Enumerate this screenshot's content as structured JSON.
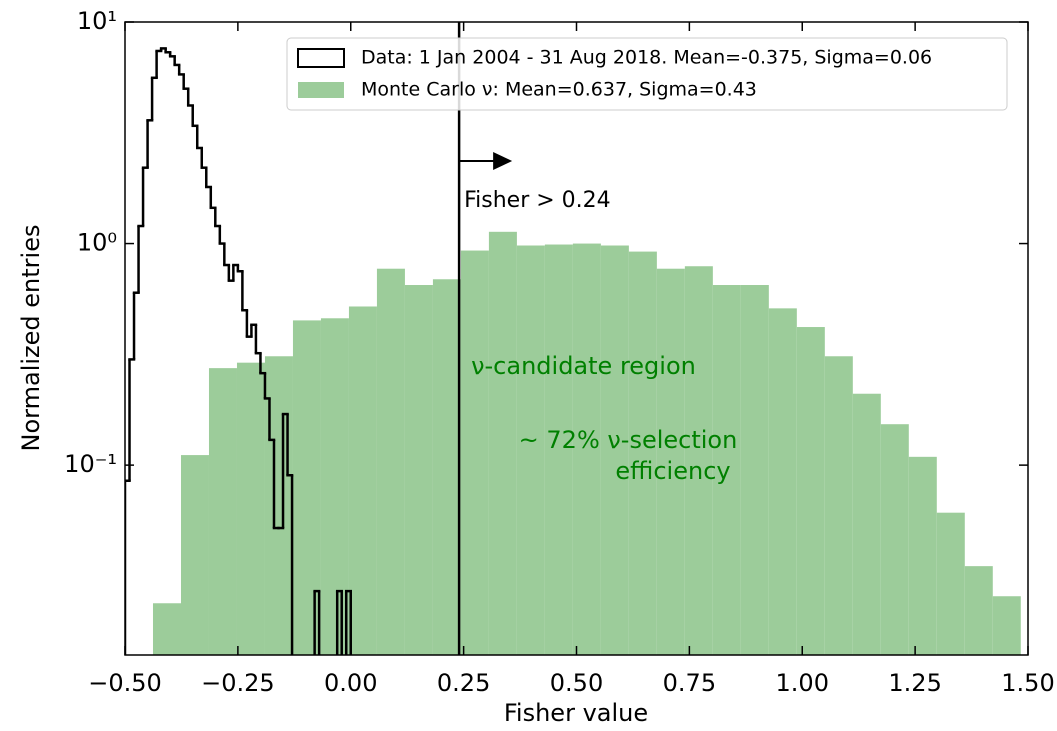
{
  "chart_data": {
    "type": "histogram",
    "xlabel": "Fisher value",
    "ylabel": "Normalized entries",
    "xlim": [
      -0.5,
      1.5
    ],
    "ylim": [
      0.0139,
      10
    ],
    "yscale": "log",
    "xticks": [
      {
        "value": -0.5,
        "label": "−0.50"
      },
      {
        "value": -0.25,
        "label": "−0.25"
      },
      {
        "value": 0,
        "label": "0.00"
      },
      {
        "value": 0.25,
        "label": "0.25"
      },
      {
        "value": 0.5,
        "label": "0.50"
      },
      {
        "value": 0.75,
        "label": "0.75"
      },
      {
        "value": 1,
        "label": "1.00"
      },
      {
        "value": 1.25,
        "label": "1.25"
      },
      {
        "value": 1.5,
        "label": "1.50"
      }
    ],
    "yticks": [
      {
        "value": 0.1,
        "label": "10⁻¹"
      },
      {
        "value": 1,
        "label": "10⁰"
      },
      {
        "value": 10,
        "label": "10¹"
      }
    ],
    "legend_position": "upper right",
    "series": [
      {
        "name": "Data: 1 Jan 2004 - 31 Aug 2018. Mean=-0.375, Sigma=0.06",
        "style": "step",
        "color": "#000000",
        "bins": [
          -0.5,
          -0.49,
          -0.48,
          -0.47,
          -0.46,
          -0.45,
          -0.44,
          -0.43,
          -0.42,
          -0.41,
          -0.4,
          -0.39,
          -0.38,
          -0.37,
          -0.36,
          -0.35,
          -0.34,
          -0.33,
          -0.32,
          -0.31,
          -0.3,
          -0.29,
          -0.28,
          -0.27,
          -0.26,
          -0.25,
          -0.24,
          -0.23,
          -0.22,
          -0.21,
          -0.2,
          -0.19,
          -0.18,
          -0.17,
          -0.16,
          -0.15,
          -0.14,
          -0.13,
          -0.12,
          -0.11,
          -0.1,
          -0.09,
          -0.08,
          -0.07,
          -0.06,
          -0.05,
          -0.04,
          -0.03,
          -0.02,
          -0.01,
          0,
          0.01
        ],
        "values": [
          0.085,
          0.3,
          0.6,
          1.2,
          2.2,
          3.6,
          5.6,
          7.4,
          7.6,
          7.3,
          7.0,
          6.4,
          5.8,
          5.0,
          4.2,
          3.4,
          2.7,
          2.2,
          1.8,
          1.45,
          1.2,
          1.0,
          0.8,
          0.68,
          0.8,
          0.75,
          0.5,
          0.38,
          0.43,
          0.32,
          0.26,
          0.2,
          0.13,
          0.052,
          0.052,
          0.17,
          0.09,
          0,
          0,
          0,
          0,
          0,
          0.027,
          0,
          0,
          0,
          0,
          0.027,
          0,
          0.027,
          0
        ]
      },
      {
        "name": "Monte Carlo ν: Mean=0.637, Sigma=0.43",
        "style": "filled",
        "color": "#9ccc9a",
        "bins": [
          -0.438,
          -0.376,
          -0.314,
          -0.252,
          -0.19,
          -0.128,
          -0.066,
          -0.004,
          0.058,
          0.12,
          0.182,
          0.244,
          0.306,
          0.368,
          0.43,
          0.492,
          0.554,
          0.616,
          0.678,
          0.74,
          0.802,
          0.864,
          0.926,
          0.988,
          1.05,
          1.112,
          1.174,
          1.236,
          1.298,
          1.36,
          1.422,
          1.484
        ],
        "values": [
          0.0238,
          0.111,
          0.274,
          0.29,
          0.31,
          0.45,
          0.46,
          0.52,
          0.77,
          0.65,
          0.69,
          0.93,
          1.13,
          0.98,
          0.99,
          1.0,
          0.98,
          0.92,
          0.77,
          0.79,
          0.65,
          0.65,
          0.51,
          0.42,
          0.31,
          0.21,
          0.153,
          0.109,
          0.061,
          0.035,
          0.0256
        ]
      }
    ],
    "cut": 0.24,
    "cut_label": "Fisher > 0.24",
    "region_label": "ν-candidate region",
    "efficiency_label": [
      "~ 72% ν-selection",
      "efficiency"
    ],
    "annotation_color": "#008000"
  }
}
